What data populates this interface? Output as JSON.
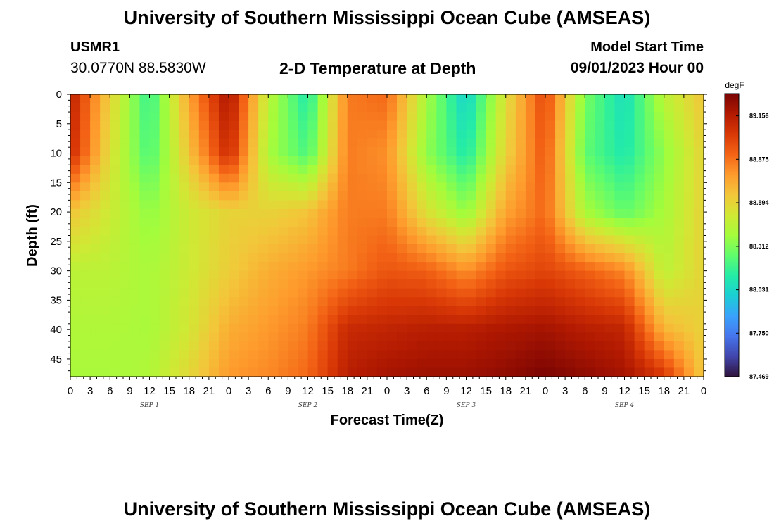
{
  "header": {
    "title": "University of Southern Mississippi Ocean Cube (AMSEAS)",
    "station_id": "USMR1",
    "station_coords": "30.0770N  88.5830W",
    "plot_title": "2-D Temperature at Depth",
    "model_start_label": "Model Start Time",
    "model_start_value": "09/01/2023 Hour 00"
  },
  "footer": {
    "title": "University of Southern Mississippi Ocean Cube (AMSEAS)"
  },
  "chart_data": {
    "type": "heatmap",
    "title": "2-D Temperature at Depth",
    "xlabel": "Forecast Time(Z)",
    "ylabel": "Depth (ft)",
    "colorbar_unit": "degF",
    "colorbar_ticks": [
      89.156,
      88.875,
      88.594,
      88.312,
      88.031,
      87.75,
      87.469
    ],
    "value_range": [
      87.469,
      89.3
    ],
    "x_range_hours": [
      0,
      96
    ],
    "x_tick_labels": [
      "0",
      "3",
      "6",
      "9",
      "12",
      "15",
      "18",
      "21",
      "0",
      "3",
      "6",
      "9",
      "12",
      "15",
      "18",
      "21",
      "0",
      "3",
      "6",
      "9",
      "12",
      "15",
      "18",
      "21",
      "0",
      "3",
      "6",
      "9",
      "12",
      "15",
      "18",
      "21",
      "0"
    ],
    "day_labels": [
      "SEP 1",
      "SEP 2",
      "SEP 3",
      "SEP 4"
    ],
    "y_ticks": [
      0,
      5,
      10,
      15,
      20,
      25,
      30,
      35,
      40,
      45
    ],
    "y_range": [
      0,
      48
    ],
    "colors": [
      "#30123b",
      "#4145ab",
      "#4675ed",
      "#39a2fc",
      "#1bcfd4",
      "#24eca6",
      "#61fc6c",
      "#a4fc3b",
      "#d1e834",
      "#f3c63a",
      "#fe9b2d",
      "#f36315",
      "#d93806",
      "#b11901",
      "#7a0403"
    ],
    "depth_profile": {
      "x_hours": [
        0,
        6,
        12,
        18,
        24,
        30,
        36,
        42,
        48,
        54,
        60,
        66,
        72,
        78,
        84,
        90,
        96
      ],
      "depths_ft": [
        0,
        10,
        20,
        30,
        40,
        48
      ],
      "values": [
        [
          89.15,
          88.6,
          88.15,
          88.75,
          89.2,
          88.45,
          88.1,
          88.85,
          88.9,
          88.4,
          88.0,
          88.55,
          89.0,
          88.3,
          88.05,
          88.45,
          88.65
        ],
        [
          89.1,
          88.55,
          88.2,
          88.65,
          89.1,
          88.4,
          88.2,
          88.85,
          88.8,
          88.35,
          88.1,
          88.6,
          88.95,
          88.25,
          88.1,
          88.35,
          88.6
        ],
        [
          88.65,
          88.5,
          88.35,
          88.5,
          88.6,
          88.6,
          88.65,
          88.85,
          88.85,
          88.55,
          88.35,
          88.75,
          88.9,
          88.4,
          88.25,
          88.4,
          88.6
        ],
        [
          88.45,
          88.45,
          88.4,
          88.5,
          88.62,
          88.72,
          88.78,
          88.85,
          88.95,
          88.92,
          88.8,
          88.95,
          89.0,
          88.92,
          88.82,
          88.45,
          88.6
        ],
        [
          88.42,
          88.42,
          88.4,
          88.52,
          88.72,
          88.78,
          88.85,
          89.1,
          89.12,
          89.15,
          89.15,
          89.18,
          89.2,
          89.15,
          89.12,
          88.7,
          88.6
        ],
        [
          88.4,
          88.4,
          88.42,
          88.58,
          88.78,
          88.82,
          88.9,
          89.15,
          89.2,
          89.22,
          89.22,
          89.25,
          89.3,
          89.25,
          89.2,
          89.05,
          88.62
        ]
      ]
    }
  }
}
